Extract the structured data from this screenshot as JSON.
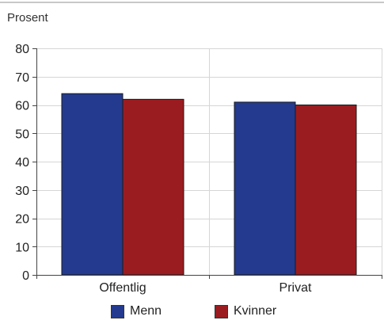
{
  "chart_data": {
    "type": "bar",
    "ylabel": "Prosent",
    "xlabel": "",
    "title": "",
    "categories": [
      "Offentlig",
      "Privat"
    ],
    "series": [
      {
        "name": "Menn",
        "values": [
          64,
          61
        ],
        "color": "#233a8f"
      },
      {
        "name": "Kvinner",
        "values": [
          62,
          60
        ],
        "color": "#9b1c20"
      }
    ],
    "ylim": [
      0,
      80
    ],
    "yticks": [
      0,
      10,
      20,
      30,
      40,
      50,
      60,
      70,
      80
    ],
    "grid": true,
    "legend_position": "bottom"
  }
}
